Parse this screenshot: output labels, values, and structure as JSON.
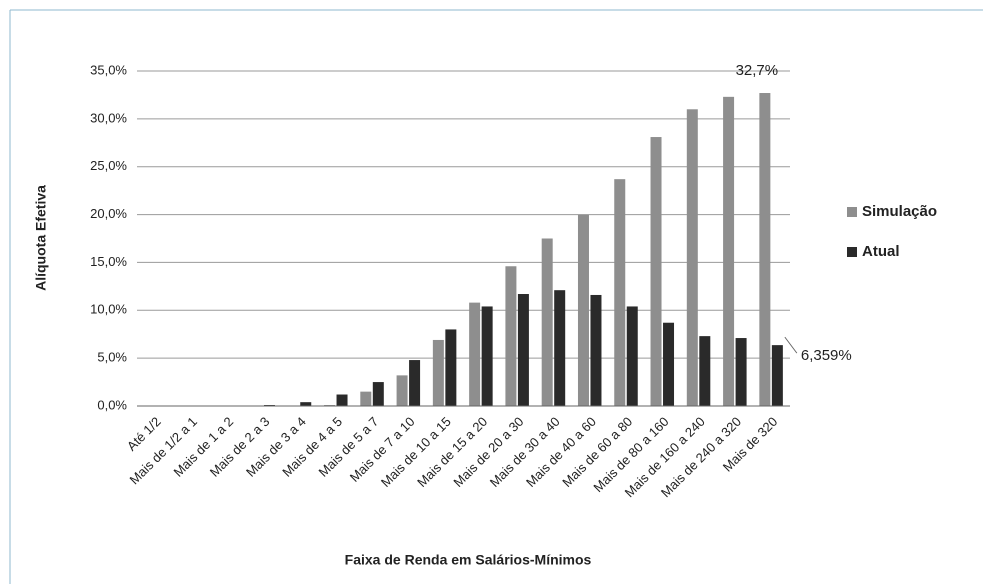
{
  "chart_data": {
    "type": "bar",
    "categories": [
      "Até 1/2",
      "Mais de 1/2 a 1",
      "Mais de 1 a 2",
      "Mais de 2 a 3",
      "Mais de 3 a 4",
      "Mais de 4 a 5",
      "Mais de 5 a 7",
      "Mais de 7 a 10",
      "Mais de 10 a 15",
      "Mais de 15 a 20",
      "Mais de 20 a 30",
      "Mais de 30 a 40",
      "Mais de 40 a 60",
      "Mais de 60 a 80",
      "Mais de 80 a 160",
      "Mais de 160 a 240",
      "Mais de 240 a 320",
      "Mais de 320"
    ],
    "series": [
      {
        "name": "Simulação",
        "color": "#8e8e8e",
        "values": [
          0,
          0,
          0,
          0,
          0.05,
          0.1,
          1.5,
          3.2,
          6.9,
          10.8,
          14.6,
          17.5,
          20.0,
          23.7,
          28.1,
          31.0,
          32.3,
          32.7
        ],
        "value_labels": [
          null,
          null,
          null,
          null,
          null,
          null,
          null,
          null,
          null,
          null,
          null,
          null,
          null,
          null,
          null,
          null,
          null,
          "32,7%"
        ]
      },
      {
        "name": "Atual",
        "color": "#2a2a2a",
        "values": [
          0,
          0.05,
          0.05,
          0.1,
          0.4,
          1.2,
          2.5,
          4.8,
          8.0,
          10.4,
          11.7,
          12.1,
          11.6,
          10.4,
          8.7,
          7.3,
          7.1,
          6.359
        ],
        "value_labels": [
          null,
          null,
          null,
          null,
          null,
          null,
          null,
          null,
          null,
          null,
          null,
          null,
          null,
          null,
          null,
          null,
          null,
          "6,359%"
        ]
      }
    ],
    "ylim": [
      0,
      35
    ],
    "yticks": [
      {
        "value": 0,
        "label": "0,0%"
      },
      {
        "value": 5,
        "label": "5,0%"
      },
      {
        "value": 10,
        "label": "10,0%"
      },
      {
        "value": 15,
        "label": "15,0%"
      },
      {
        "value": 20,
        "label": "20,0%"
      },
      {
        "value": 25,
        "label": "25,0%"
      },
      {
        "value": 30,
        "label": "30,0%"
      },
      {
        "value": 35,
        "label": "35,0%"
      }
    ],
    "y_label": "Alíquota Efetiva",
    "x_label": "Faixa de Renda em Salários-Mínimos",
    "grid": true,
    "legend": "right"
  }
}
